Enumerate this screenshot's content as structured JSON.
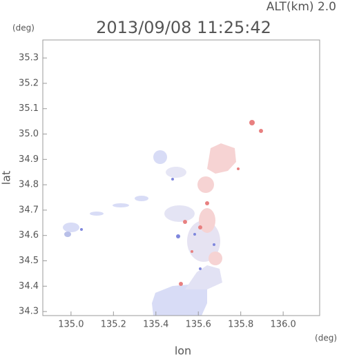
{
  "chart_data": {
    "type": "map",
    "title": "2013/09/08 11:25:42",
    "subtitle": "ALT(km) 2.0",
    "y_unit": "(deg)",
    "x_unit": "(deg)",
    "xlabel": "lon",
    "ylabel": "lat",
    "xlim": [
      134.867,
      136.172
    ],
    "ylim": [
      34.284,
      35.371
    ],
    "xticks": [
      {
        "value": 135,
        "label": "135.0"
      },
      135.2,
      135.4,
      135.6,
      135.8,
      {
        "value": 136,
        "label": "136.0"
      }
    ],
    "yticks": [
      34.3,
      34.4,
      34.5,
      34.6,
      34.7,
      34.8,
      34.9,
      {
        "value": 35,
        "label": "35.0"
      },
      35.1,
      35.2,
      35.3
    ]
  }
}
